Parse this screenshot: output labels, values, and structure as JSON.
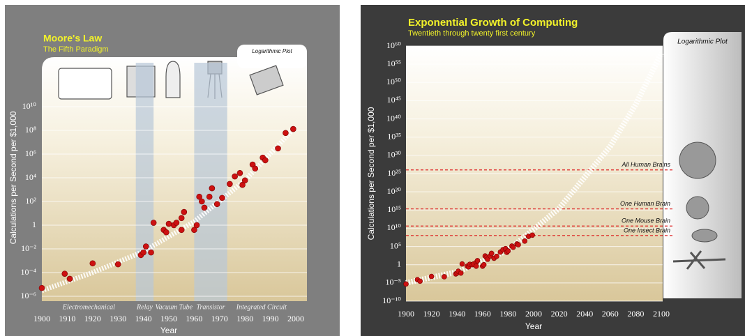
{
  "chart_data": [
    {
      "type": "scatter",
      "title": "Moore's Law",
      "subtitle": "The Fifth Paradigm",
      "panel_label": "Logarithmic Plot",
      "x_label": "Year",
      "y_label": "Calculations per Second per $1,000",
      "y_log": true,
      "grid": true,
      "xlim": [
        1900,
        2000
      ],
      "xticks": [
        1900,
        1910,
        1920,
        1930,
        1940,
        1950,
        1960,
        1970,
        1980,
        1990,
        2000
      ],
      "ylim": [
        1e-06,
        100000000000000.0
      ],
      "yticks": [
        {
          "value": 1e-06,
          "label": "10⁻⁶"
        },
        {
          "value": 0.0001,
          "label": "10⁻⁴"
        },
        {
          "value": 0.01,
          "label": "10⁻²"
        },
        1,
        {
          "value": 100,
          "label": "10²"
        },
        {
          "value": 10000,
          "label": "10⁴"
        },
        {
          "value": 1000000,
          "label": "10⁶"
        },
        {
          "value": 100000000,
          "label": "10⁸"
        },
        {
          "value": 10000000000,
          "label": "10¹⁰"
        }
      ],
      "eras": [
        {
          "label": "Electromechanical",
          "start": 1900,
          "end": 1937
        },
        {
          "label": "Relay",
          "start": 1937,
          "end": 1944,
          "shaded": true
        },
        {
          "label": "Vacuum Tube",
          "start": 1944,
          "end": 1960
        },
        {
          "label": "Transistor",
          "start": 1960,
          "end": 1973,
          "shaded": true
        },
        {
          "label": "Integrated Circuit",
          "start": 1973,
          "end": 2000
        }
      ],
      "trend": {
        "color": "#ffffff",
        "x": [
          1900,
          1920,
          1940,
          1960,
          1980,
          2000
        ],
        "values": [
          3e-06,
          0.0001,
          0.006,
          2,
          6000,
          200000000.0
        ]
      },
      "series": [
        {
          "color": "#cc1111",
          "x": [
            1900,
            1909,
            1911,
            1920,
            1930,
            1939,
            1940,
            1941,
            1943,
            1944,
            1948,
            1949,
            1950,
            1952,
            1953,
            1955,
            1955,
            1956,
            1960,
            1961,
            1962,
            1963,
            1964,
            1966,
            1967,
            1969,
            1971,
            1974,
            1976,
            1978,
            1979,
            1980,
            1983,
            1984,
            1987,
            1988,
            1993,
            1996,
            1999
          ],
          "values": [
            5e-06,
            8e-05,
            3e-05,
            0.0006,
            0.0005,
            0.003,
            0.005,
            0.016,
            0.005,
            1.6,
            0.4,
            0.25,
            1.3,
            1,
            1.6,
            4,
            0.4,
            13,
            0.4,
            1,
            250,
            100,
            30,
            250,
            1300,
            60,
            200,
            3000,
            13000,
            25000,
            2500,
            6000,
            130000,
            60000,
            500000,
            300000,
            3000000,
            60000000,
            130000000
          ]
        }
      ]
    },
    {
      "type": "scatter",
      "title": "Exponential Growth of Computing",
      "subtitle": "Twentieth through twenty first century",
      "panel_label": "Logarithmic Plot",
      "x_label": "Year",
      "y_label": "Calculations per Second per $1,000",
      "y_log": true,
      "grid": true,
      "xlim": [
        1900,
        2100
      ],
      "xticks": [
        1900,
        1920,
        1940,
        1960,
        1980,
        2000,
        2020,
        2040,
        2060,
        2080,
        2100
      ],
      "ylim": [
        1e-10,
        1e+60
      ],
      "yticks": [
        {
          "value": 1e-10,
          "label": "10⁻¹⁰"
        },
        {
          "value": 1e-05,
          "label": "10⁻⁵"
        },
        1,
        {
          "value": 100000.0,
          "label": "10⁵"
        },
        {
          "value": 10000000000.0,
          "label": "10¹⁰"
        },
        {
          "value": 1000000000000000.0,
          "label": "10¹⁵"
        },
        {
          "value": 1e+20,
          "label": "10²⁰"
        },
        {
          "value": 1e+25,
          "label": "10²⁵"
        },
        {
          "value": 1e+30,
          "label": "10³⁰"
        },
        {
          "value": 1e+35,
          "label": "10³⁵"
        },
        {
          "value": 1e+40,
          "label": "10⁴⁰"
        },
        {
          "value": 1e+45,
          "label": "10⁴⁵"
        },
        {
          "value": 1e+50,
          "label": "10⁵⁰"
        },
        {
          "value": 1e+55,
          "label": "10⁵⁵"
        },
        {
          "value": 1e+60,
          "label": "10⁶⁰"
        }
      ],
      "reference_lines": [
        {
          "label": "All Human Brains",
          "value": 1e+26,
          "color": "#dd2222"
        },
        {
          "label": "One Human Brain",
          "value": 2000000000000000.0,
          "color": "#dd2222"
        },
        {
          "label": "One Mouse Brain",
          "value": 40000000000.0,
          "color": "#dd2222"
        },
        {
          "label": "One Insect Brain",
          "value": 100000000.0,
          "color": "#dd2222"
        }
      ],
      "trend": {
        "color": "#ffffff",
        "x": [
          1900,
          1940,
          1960,
          1980,
          2000,
          2020,
          2040,
          2060,
          2080,
          2100
        ],
        "values": [
          1e-05,
          0.01,
          10,
          10000,
          5000000000.0,
          3000000000000000.0,
          1e+24,
          3e+32,
          1e+44,
          1e+58
        ]
      },
      "series": [
        {
          "color": "#cc1111",
          "x": [
            1900,
            1909,
            1911,
            1920,
            1930,
            1939,
            1940,
            1941,
            1943,
            1944,
            1948,
            1949,
            1950,
            1952,
            1953,
            1955,
            1955,
            1956,
            1960,
            1961,
            1962,
            1963,
            1964,
            1966,
            1967,
            1969,
            1971,
            1974,
            1976,
            1978,
            1979,
            1980,
            1983,
            1984,
            1987,
            1988,
            1993,
            1996,
            1999
          ],
          "values": [
            5e-06,
            8e-05,
            3e-05,
            0.0006,
            0.0005,
            0.003,
            0.005,
            0.016,
            0.005,
            1.6,
            0.4,
            0.25,
            1.3,
            1,
            1.6,
            4,
            0.4,
            13,
            0.4,
            1,
            250,
            100,
            30,
            250,
            1300,
            60,
            200,
            3000,
            13000,
            25000,
            2500,
            6000,
            130000,
            60000,
            500000,
            300000,
            3000000,
            60000000,
            130000000
          ]
        }
      ]
    }
  ]
}
